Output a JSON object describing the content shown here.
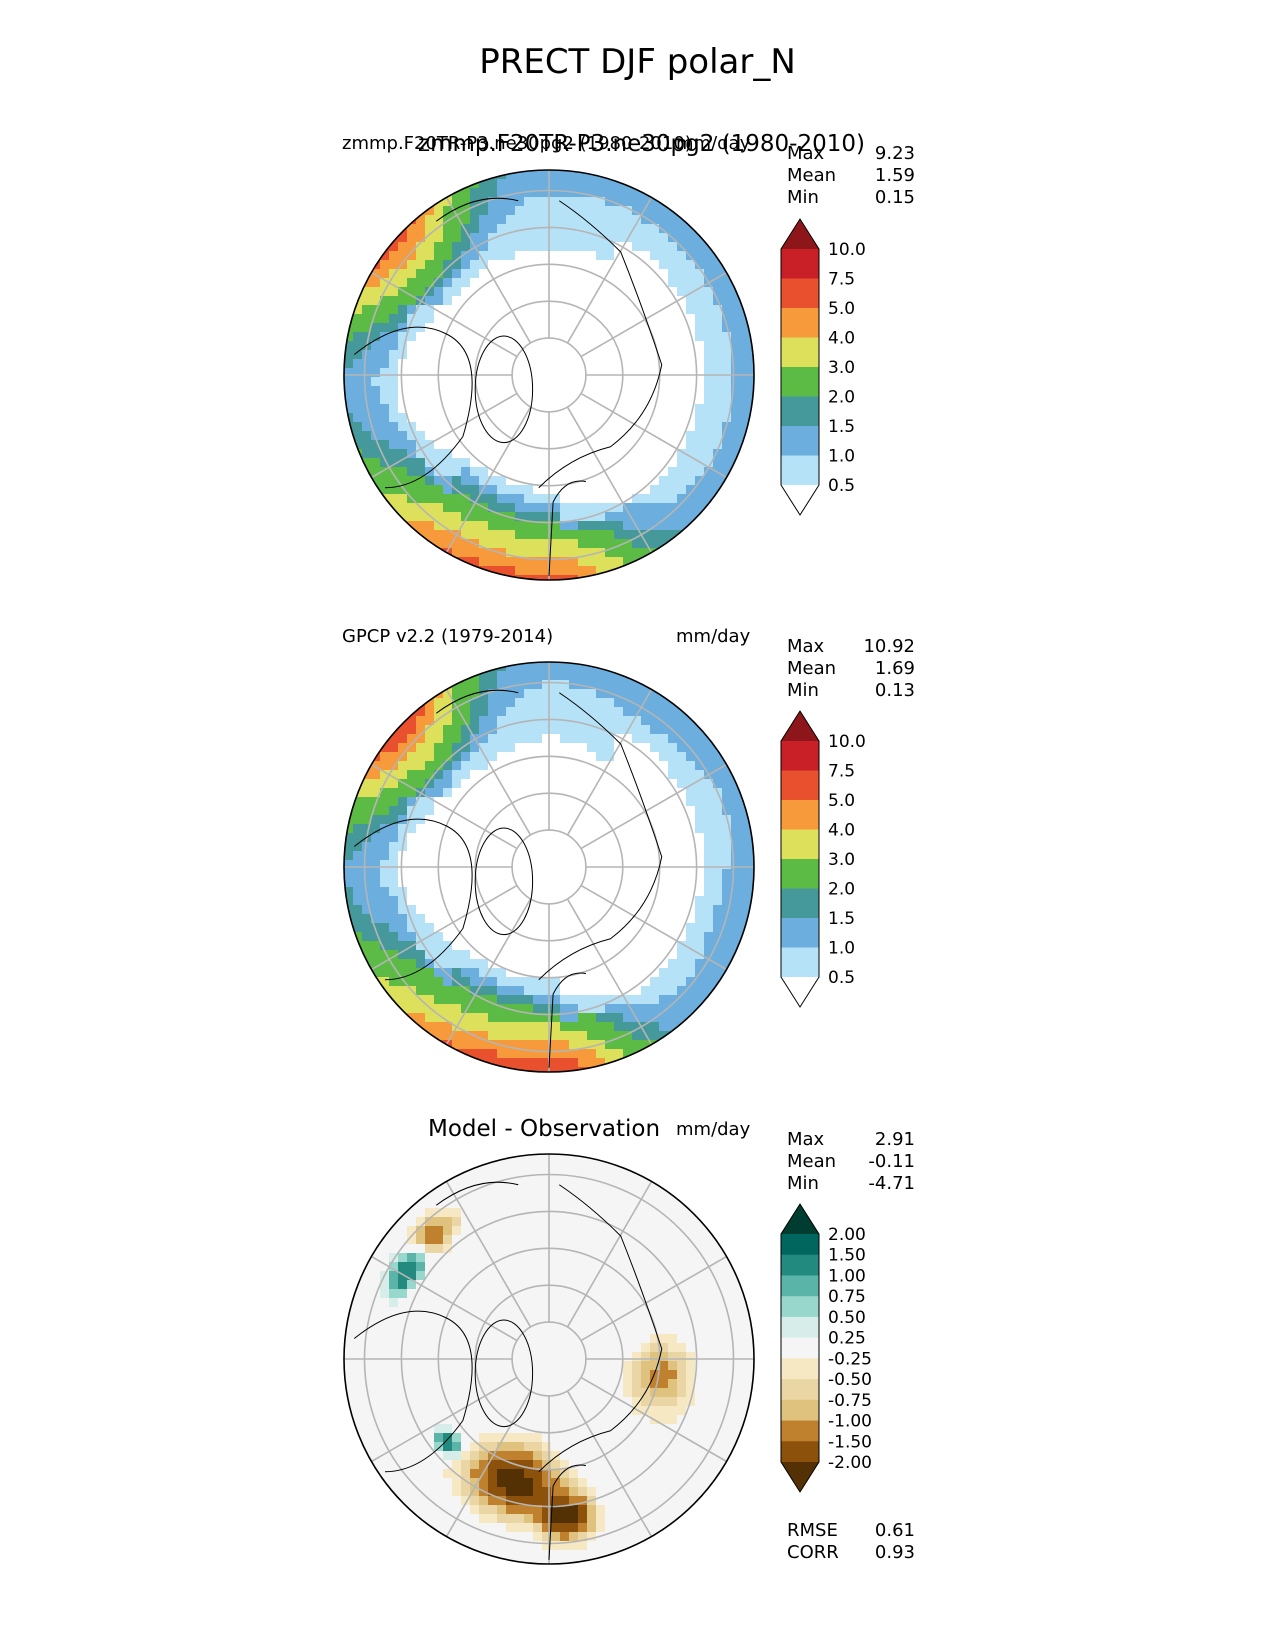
{
  "title": "PRECT DJF polar_N",
  "colors": {
    "precip": [
      "#ffffff",
      "#b6e2f8",
      "#6caedd",
      "#46999a",
      "#5cbb45",
      "#dde05a",
      "#f79a3b",
      "#e8502e",
      "#c92028",
      "#8d161b"
    ],
    "diff": [
      "#543005",
      "#8c510a",
      "#bf812d",
      "#dfc27d",
      "#e9d6a4",
      "#f6e8c3",
      "#f5f5f5",
      "#d7ede9",
      "#98d7cb",
      "#5ab4a8",
      "#238a80",
      "#01665e",
      "#003c30"
    ],
    "land": "#000000",
    "grid": "#b5b5b5"
  },
  "panels": [
    {
      "left_label": "zmmp.F20TR-P3.ne30pg2 (1980-2010)",
      "overlay_label": "zmmp.F20TR-P3.ne30pg2 (1980-2010)",
      "units": "mm/day",
      "stats": [
        [
          "Max",
          "9.23"
        ],
        [
          "Mean",
          "1.59"
        ],
        [
          "Min",
          "0.15"
        ]
      ],
      "colorbar": "precip"
    },
    {
      "left_label": "GPCP v2.2 (1979-2014)",
      "units": "mm/day",
      "stats": [
        [
          "Max",
          "10.92"
        ],
        [
          "Mean",
          "1.69"
        ],
        [
          "Min",
          "0.13"
        ]
      ],
      "colorbar": "precip"
    },
    {
      "title": "Model - Observation",
      "units": "mm/day",
      "stats": [
        [
          "Max",
          "2.91"
        ],
        [
          "Mean",
          "-0.11"
        ],
        [
          "Min",
          "-4.71"
        ]
      ],
      "colorbar": "diff",
      "metrics": [
        [
          "RMSE",
          "0.61"
        ],
        [
          "CORR",
          "0.93"
        ]
      ]
    }
  ],
  "chart_data": [
    {
      "type": "heatmap",
      "projection": "north polar stereographic",
      "field": "PRECT",
      "season": "DJF",
      "dataset": "zmmp.F20TR-P3.ne30pg2 (1980-2010)",
      "units": "mm/day",
      "max": 9.23,
      "mean": 1.59,
      "min": 0.15,
      "levels": [
        0.5,
        1.0,
        1.5,
        2.0,
        3.0,
        4.0,
        5.0,
        7.5,
        10.0
      ],
      "colorbar_extend": "both"
    },
    {
      "type": "heatmap",
      "projection": "north polar stereographic",
      "field": "PRECT",
      "season": "DJF",
      "dataset": "GPCP v2.2 (1979-2014)",
      "units": "mm/day",
      "max": 10.92,
      "mean": 1.69,
      "min": 0.13,
      "levels": [
        0.5,
        1.0,
        1.5,
        2.0,
        3.0,
        4.0,
        5.0,
        7.5,
        10.0
      ],
      "colorbar_extend": "both"
    },
    {
      "type": "heatmap",
      "projection": "north polar stereographic",
      "field": "PRECT",
      "season": "DJF",
      "dataset": "Model - Observation",
      "units": "mm/day",
      "max": 2.91,
      "mean": -0.11,
      "min": -4.71,
      "rmse": 0.61,
      "corr": 0.93,
      "levels": [
        -2.0,
        -1.5,
        -1.0,
        -0.75,
        -0.5,
        -0.25,
        0.25,
        0.5,
        0.75,
        1.0,
        1.5,
        2.0
      ],
      "colorbar_extend": "both"
    }
  ]
}
